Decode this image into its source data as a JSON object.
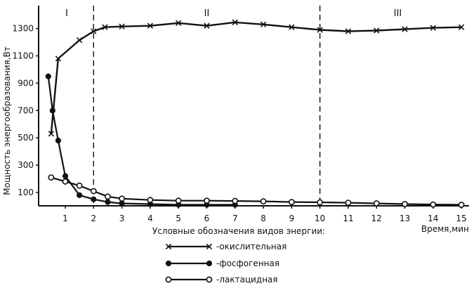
{
  "chart_data": {
    "type": "line",
    "ylabel": "Мощность энергообразования,Вт",
    "xlabel": "Время,мин",
    "xlim": [
      0,
      15.5
    ],
    "ylim": [
      0,
      1420
    ],
    "x_ticks": [
      1,
      2,
      3,
      4,
      5,
      6,
      7,
      8,
      9,
      10,
      11,
      12,
      13,
      14,
      15
    ],
    "x_tick_labels": [
      "1",
      "2",
      "3",
      "4",
      "5",
      "6",
      "7",
      "8",
      "9",
      "10",
      "11",
      "12",
      "13",
      "14",
      "15"
    ],
    "y_ticks": [
      100,
      300,
      500,
      700,
      900,
      1100,
      1300
    ],
    "y_tick_labels": [
      "100",
      "300",
      "500",
      "700",
      "900",
      "1100",
      "1300"
    ],
    "zones": [
      {
        "label": "I",
        "from": 0,
        "to": 2
      },
      {
        "label": "II",
        "from": 2,
        "to": 10
      },
      {
        "label": "III",
        "from": 10,
        "to": 15.5
      }
    ],
    "zone_boundaries": [
      2,
      10
    ],
    "legend_title": "Условные обозначения видов энергии:",
    "series": [
      {
        "name": "окислительная",
        "marker": "x",
        "x": [
          0.5,
          0.75,
          1.5,
          2,
          2.4,
          3,
          4,
          5,
          6,
          7,
          8,
          9,
          10,
          11,
          12,
          13,
          14,
          15
        ],
        "y": [
          530,
          1080,
          1215,
          1280,
          1310,
          1315,
          1320,
          1340,
          1320,
          1345,
          1330,
          1310,
          1290,
          1280,
          1285,
          1295,
          1305,
          1310
        ]
      },
      {
        "name": "фосфогенная",
        "marker": "filled-circle",
        "x": [
          0.4,
          0.55,
          0.75,
          1,
          1.5,
          2,
          2.5,
          3,
          4,
          5,
          6,
          7
        ],
        "y": [
          950,
          700,
          480,
          220,
          80,
          50,
          30,
          20,
          15,
          10,
          10,
          10
        ]
      },
      {
        "name": "лактацидная",
        "marker": "open-circle",
        "x": [
          0.5,
          1,
          1.5,
          2,
          2.5,
          3,
          4,
          5,
          6,
          7,
          8,
          9,
          10,
          11,
          12,
          13,
          14,
          15
        ],
        "y": [
          210,
          180,
          150,
          110,
          70,
          55,
          45,
          40,
          40,
          38,
          35,
          30,
          28,
          25,
          20,
          15,
          12,
          10
        ]
      }
    ]
  }
}
